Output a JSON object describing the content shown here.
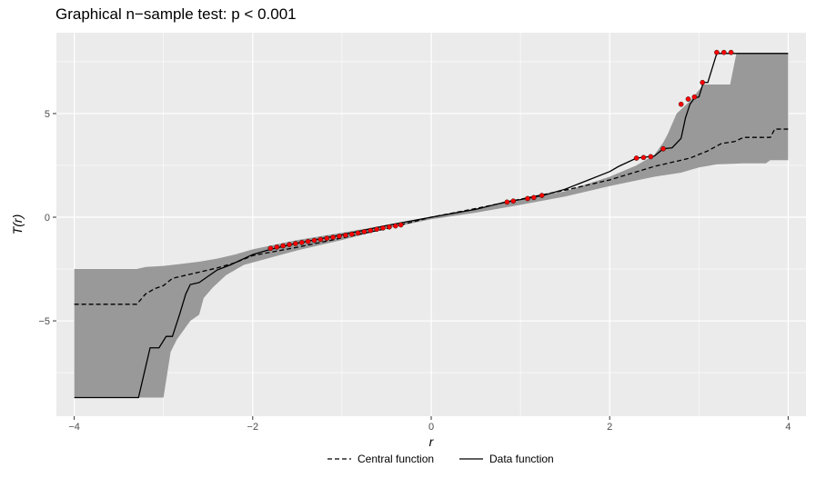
{
  "chart_data": {
    "type": "line",
    "title": "Graphical n−sample test: p < 0.001",
    "xlabel": "r",
    "ylabel": "T(r)",
    "xlim": [
      -4.2,
      4.2
    ],
    "ylim": [
      -9.6,
      8.9
    ],
    "x_ticks": [
      -4,
      -2,
      0,
      2,
      4
    ],
    "x_tick_labels": [
      "−4",
      "−2",
      "0",
      "2",
      "4"
    ],
    "y_ticks": [
      -5,
      0,
      5
    ],
    "y_tick_labels": [
      "−5",
      "0",
      "5"
    ],
    "grid": true,
    "legend_position": "bottom",
    "envelope": {
      "color": "#999999",
      "upper": [
        [
          -4,
          -2.5
        ],
        [
          -3.6,
          -2.5
        ],
        [
          -3.3,
          -2.5
        ],
        [
          -3.2,
          -2.4
        ],
        [
          -3.0,
          -2.35
        ],
        [
          -2.8,
          -2.25
        ],
        [
          -2.6,
          -2.15
        ],
        [
          -2.4,
          -2.0
        ],
        [
          -2.2,
          -1.8
        ],
        [
          -2.0,
          -1.55
        ],
        [
          -1.5,
          -1.1
        ],
        [
          -1.0,
          -0.75
        ],
        [
          -0.5,
          -0.38
        ],
        [
          0,
          0.02
        ],
        [
          0.5,
          0.42
        ],
        [
          1.0,
          0.85
        ],
        [
          1.5,
          1.25
        ],
        [
          2.0,
          1.95
        ],
        [
          2.3,
          2.5
        ],
        [
          2.5,
          3.0
        ],
        [
          2.6,
          3.6
        ],
        [
          2.65,
          4.0
        ],
        [
          2.75,
          5.0
        ],
        [
          2.9,
          5.6
        ],
        [
          3.05,
          6.4
        ],
        [
          3.35,
          6.4
        ],
        [
          3.42,
          7.9
        ],
        [
          4,
          7.9
        ]
      ],
      "lower": [
        [
          -4,
          -8.7
        ],
        [
          -3.0,
          -8.7
        ],
        [
          -2.92,
          -6.5
        ],
        [
          -2.85,
          -5.9
        ],
        [
          -2.7,
          -5.0
        ],
        [
          -2.6,
          -4.7
        ],
        [
          -2.55,
          -3.9
        ],
        [
          -2.45,
          -3.4
        ],
        [
          -2.3,
          -2.8
        ],
        [
          -2.1,
          -2.3
        ],
        [
          -1.8,
          -1.95
        ],
        [
          -1.5,
          -1.6
        ],
        [
          -1.0,
          -1.1
        ],
        [
          -0.5,
          -0.55
        ],
        [
          0,
          -0.1
        ],
        [
          0.5,
          0.22
        ],
        [
          1.0,
          0.6
        ],
        [
          1.5,
          1.0
        ],
        [
          2.0,
          1.5
        ],
        [
          2.5,
          1.95
        ],
        [
          2.8,
          2.15
        ],
        [
          3.0,
          2.4
        ],
        [
          3.2,
          2.55
        ],
        [
          3.5,
          2.6
        ],
        [
          3.75,
          2.6
        ],
        [
          3.8,
          2.75
        ],
        [
          4,
          2.75
        ]
      ]
    },
    "series": [
      {
        "name": "Central function",
        "style": "dashed",
        "color": "#000000",
        "points": [
          [
            -4,
            -4.2
          ],
          [
            -3.3,
            -4.2
          ],
          [
            -3.2,
            -3.7
          ],
          [
            -3.1,
            -3.45
          ],
          [
            -3.0,
            -3.3
          ],
          [
            -2.9,
            -2.95
          ],
          [
            -2.8,
            -2.85
          ],
          [
            -2.6,
            -2.65
          ],
          [
            -2.4,
            -2.45
          ],
          [
            -2.2,
            -2.2
          ],
          [
            -2.0,
            -1.85
          ],
          [
            -1.5,
            -1.45
          ],
          [
            -1.0,
            -1.0
          ],
          [
            -0.5,
            -0.55
          ],
          [
            0,
            0
          ],
          [
            0.5,
            0.42
          ],
          [
            1.0,
            0.87
          ],
          [
            1.5,
            1.3
          ],
          [
            2.0,
            1.8
          ],
          [
            2.5,
            2.45
          ],
          [
            2.9,
            2.85
          ],
          [
            3.1,
            3.2
          ],
          [
            3.25,
            3.55
          ],
          [
            3.4,
            3.65
          ],
          [
            3.5,
            3.85
          ],
          [
            3.8,
            3.85
          ],
          [
            3.85,
            4.25
          ],
          [
            4,
            4.25
          ]
        ]
      },
      {
        "name": "Data function",
        "style": "solid",
        "color": "#000000",
        "points": [
          [
            -4,
            -8.7
          ],
          [
            -3.28,
            -8.7
          ],
          [
            -3.15,
            -6.3
          ],
          [
            -3.05,
            -6.3
          ],
          [
            -2.97,
            -5.75
          ],
          [
            -2.9,
            -5.75
          ],
          [
            -2.82,
            -4.7
          ],
          [
            -2.75,
            -3.7
          ],
          [
            -2.7,
            -3.25
          ],
          [
            -2.6,
            -3.15
          ],
          [
            -2.5,
            -2.85
          ],
          [
            -2.4,
            -2.55
          ],
          [
            -2.25,
            -2.3
          ],
          [
            -2.0,
            -1.8
          ],
          [
            -1.8,
            -1.55
          ],
          [
            -1.5,
            -1.25
          ],
          [
            -1.0,
            -0.85
          ],
          [
            -0.5,
            -0.4
          ],
          [
            0,
            0.0
          ],
          [
            0.5,
            0.38
          ],
          [
            0.85,
            0.75
          ],
          [
            1.0,
            0.85
          ],
          [
            1.25,
            1.05
          ],
          [
            1.5,
            1.35
          ],
          [
            2.0,
            2.2
          ],
          [
            2.1,
            2.45
          ],
          [
            2.3,
            2.85
          ],
          [
            2.5,
            2.95
          ],
          [
            2.6,
            3.3
          ],
          [
            2.7,
            3.35
          ],
          [
            2.8,
            3.8
          ],
          [
            2.85,
            4.8
          ],
          [
            2.9,
            5.45
          ],
          [
            2.95,
            5.75
          ],
          [
            3.0,
            5.8
          ],
          [
            3.05,
            6.5
          ],
          [
            3.1,
            6.5
          ],
          [
            3.2,
            7.9
          ],
          [
            4,
            7.9
          ]
        ]
      }
    ],
    "highlight_points": {
      "color": "#ff0000",
      "points": [
        [
          -1.8,
          -1.5
        ],
        [
          -1.73,
          -1.44
        ],
        [
          -1.66,
          -1.38
        ],
        [
          -1.59,
          -1.32
        ],
        [
          -1.52,
          -1.27
        ],
        [
          -1.45,
          -1.22
        ],
        [
          -1.38,
          -1.17
        ],
        [
          -1.31,
          -1.12
        ],
        [
          -1.24,
          -1.07
        ],
        [
          -1.17,
          -1.02
        ],
        [
          -1.1,
          -0.97
        ],
        [
          -1.03,
          -0.92
        ],
        [
          -0.96,
          -0.87
        ],
        [
          -0.89,
          -0.82
        ],
        [
          -0.82,
          -0.76
        ],
        [
          -0.75,
          -0.7
        ],
        [
          -0.68,
          -0.64
        ],
        [
          -0.61,
          -0.58
        ],
        [
          -0.54,
          -0.52
        ],
        [
          -0.47,
          -0.47
        ],
        [
          -0.4,
          -0.42
        ],
        [
          -0.34,
          -0.37
        ],
        [
          0.85,
          0.73
        ],
        [
          0.92,
          0.78
        ],
        [
          1.08,
          0.9
        ],
        [
          1.15,
          0.95
        ],
        [
          1.24,
          1.05
        ],
        [
          2.3,
          2.85
        ],
        [
          2.38,
          2.88
        ],
        [
          2.46,
          2.92
        ],
        [
          2.6,
          3.3
        ],
        [
          2.8,
          5.45
        ],
        [
          2.88,
          5.7
        ],
        [
          2.95,
          5.8
        ],
        [
          3.04,
          6.5
        ],
        [
          3.2,
          7.95
        ],
        [
          3.28,
          7.95
        ],
        [
          3.36,
          7.95
        ]
      ]
    },
    "legend": [
      "Central function",
      "Data function"
    ]
  }
}
